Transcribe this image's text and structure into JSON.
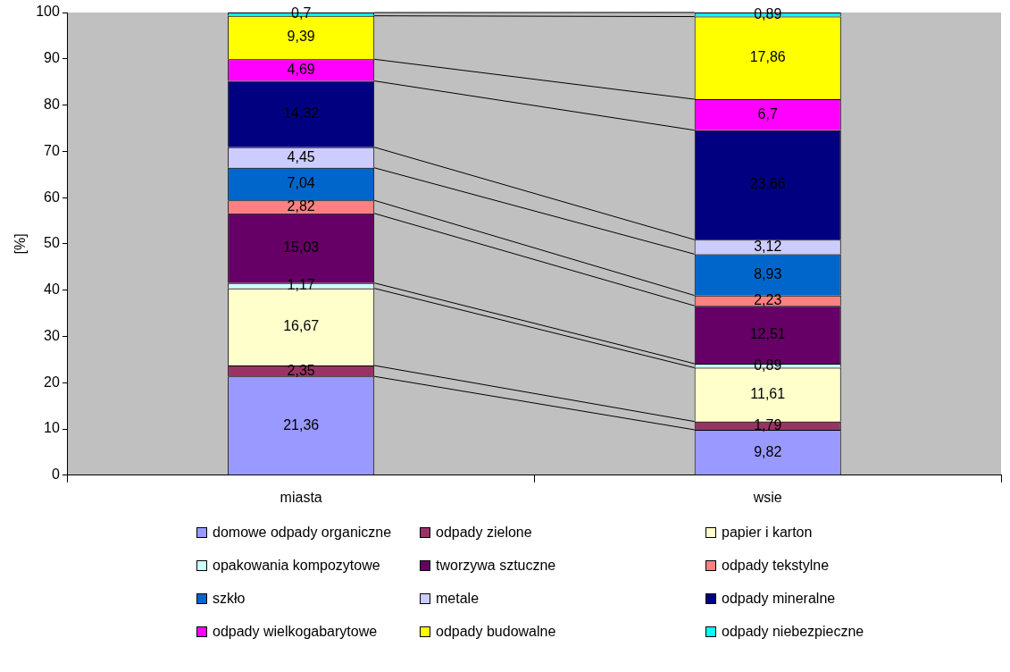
{
  "chart_data": {
    "type": "bar",
    "ylabel": "[%]",
    "categories": [
      "miasta",
      "wsie"
    ],
    "stacked": true,
    "ylim": [
      0,
      100
    ],
    "yticks": [
      0,
      10,
      20,
      30,
      40,
      50,
      60,
      70,
      80,
      90,
      100
    ],
    "legend": "bottom",
    "series": [
      {
        "name": "domowe odpady organiczne",
        "color": "#9999ff",
        "values": [
          21.36,
          9.82
        ],
        "value_labels": [
          "21,36",
          "9,82"
        ]
      },
      {
        "name": "odpady zielone",
        "color": "#993366",
        "values": [
          2.35,
          1.79
        ],
        "value_labels": [
          "2,35",
          "1,79"
        ]
      },
      {
        "name": "papier i karton",
        "color": "#ffffcc",
        "values": [
          16.67,
          11.61
        ],
        "value_labels": [
          "16,67",
          "11,61"
        ]
      },
      {
        "name": "opakowania kompozytowe",
        "color": "#ccffff",
        "values": [
          1.17,
          0.89
        ],
        "value_labels": [
          "1,17",
          "0,89"
        ]
      },
      {
        "name": "tworzywa sztuczne",
        "color": "#660066",
        "values": [
          15.03,
          12.51
        ],
        "value_labels": [
          "15,03",
          "12,51"
        ]
      },
      {
        "name": "odpady tekstylne",
        "color": "#ff8080",
        "values": [
          2.82,
          2.23
        ],
        "value_labels": [
          "2,82",
          "2,23"
        ]
      },
      {
        "name": "szkło",
        "color": "#0066cc",
        "values": [
          7.04,
          8.93
        ],
        "value_labels": [
          "7,04",
          "8,93"
        ]
      },
      {
        "name": "metale",
        "color": "#ccccff",
        "values": [
          4.45,
          3.12
        ],
        "value_labels": [
          "4,45",
          "3,12"
        ]
      },
      {
        "name": "odpady mineralne",
        "color": "#000080",
        "values": [
          14.32,
          23.66
        ],
        "value_labels": [
          "14,32",
          "23,66"
        ]
      },
      {
        "name": "odpady wielkogabarytowe",
        "color": "#ff00ff",
        "values": [
          4.69,
          6.7
        ],
        "value_labels": [
          "4,69",
          "6,7"
        ]
      },
      {
        "name": "odpady budowalne",
        "color": "#ffff00",
        "values": [
          9.39,
          17.86
        ],
        "value_labels": [
          "9,39",
          "17,86"
        ]
      },
      {
        "name": "odpady niebezpieczne",
        "color": "#00ffff",
        "values": [
          0.7,
          0.89
        ],
        "value_labels": [
          "0,7",
          "0,89"
        ]
      }
    ]
  }
}
